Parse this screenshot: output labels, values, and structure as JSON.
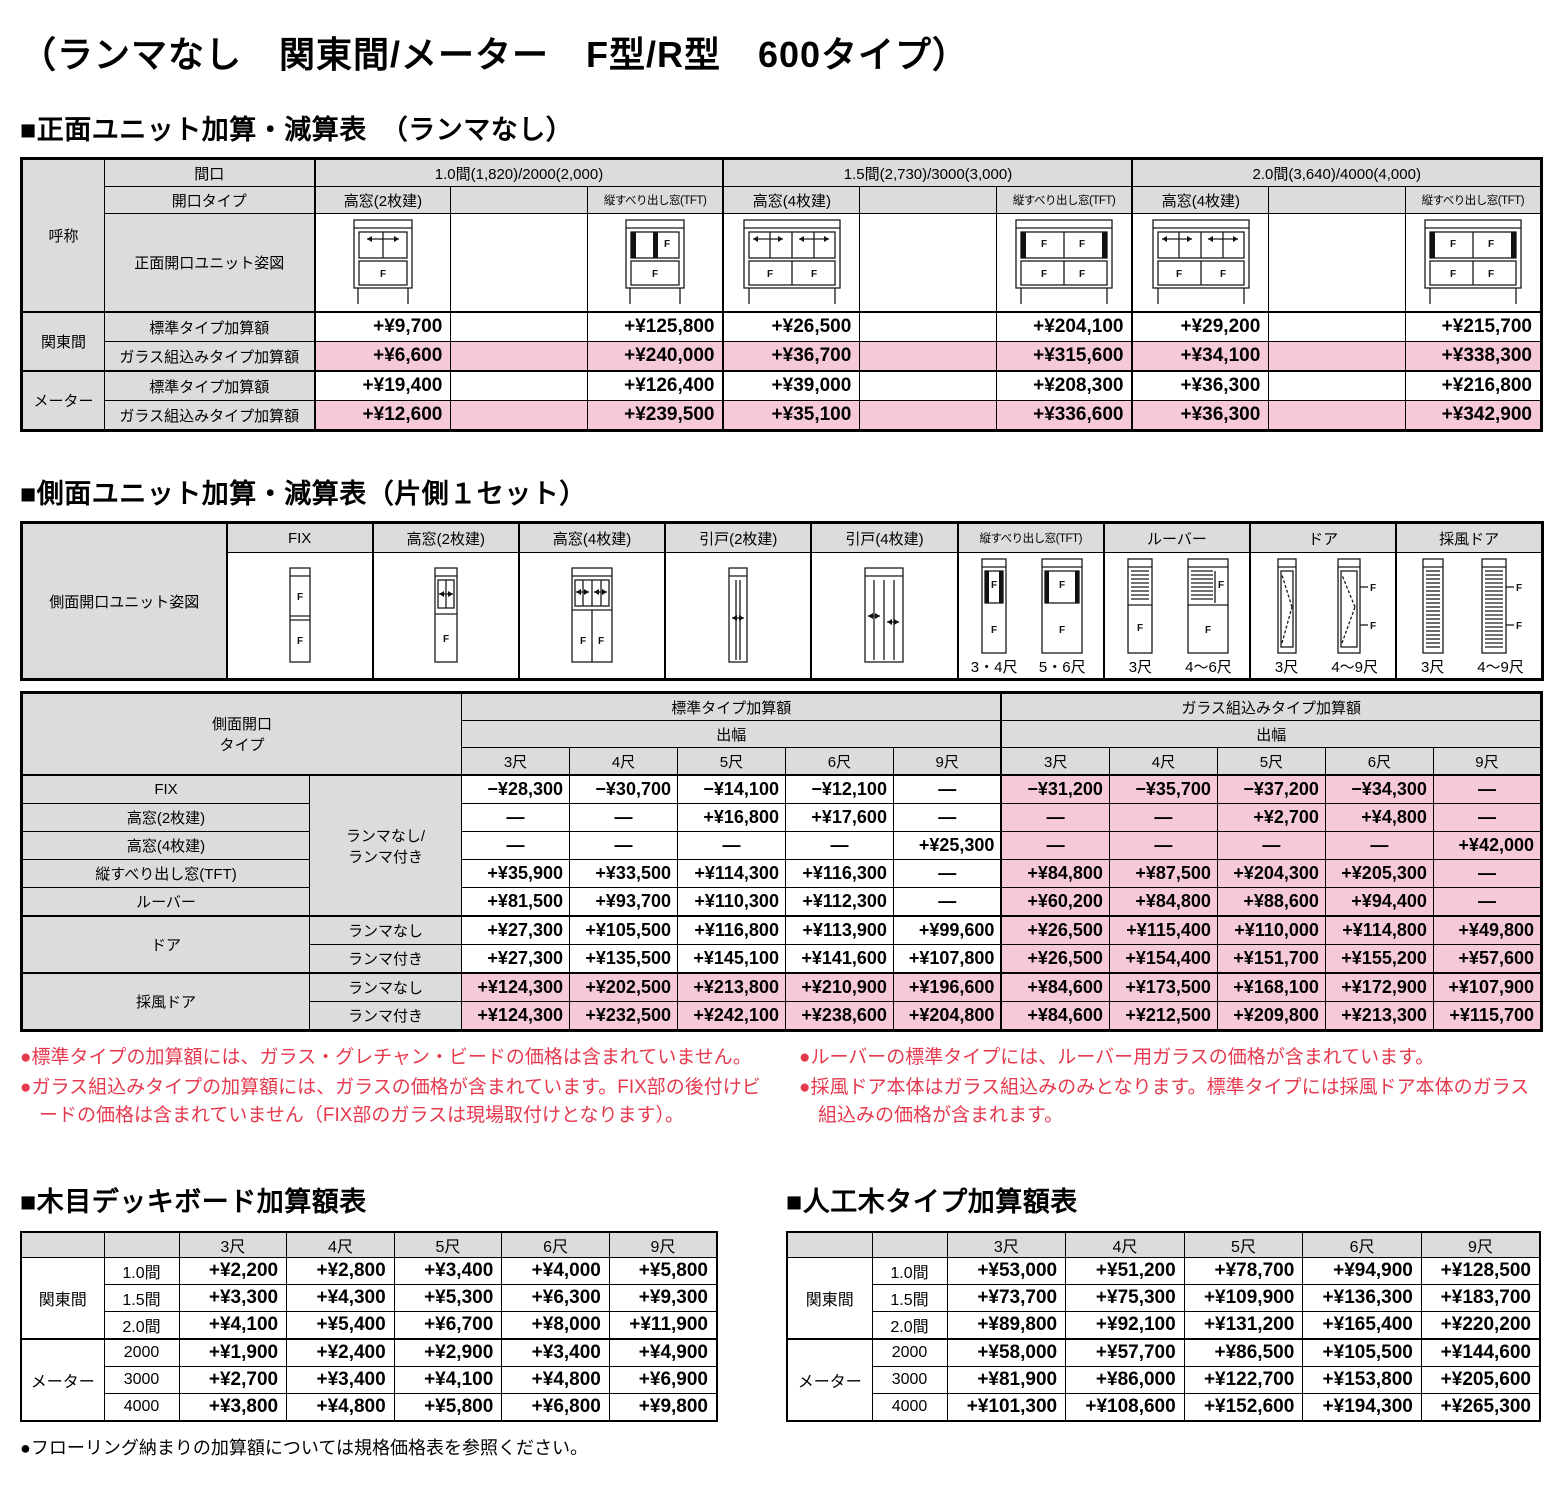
{
  "page_title": "（ランマなし　関東間/メーター　F型/R型　600タイプ）",
  "front_table": {
    "section_title": "■正面ユニット加算・減算表　（ランマなし）",
    "header": {
      "col_nickname": "呼称",
      "row_width_label": "間口",
      "row_opening_label": "開口タイプ",
      "row_diagram_label": "正面開口ユニット姿図",
      "groups": [
        {
          "span": "1.0間(1,820)/2000(2,000)",
          "cols": [
            "高窓(2枚建)",
            "",
            "縦すべり出し窓(TFT)"
          ],
          "diagrams": [
            "front-takamado2-icon",
            "",
            "front-tft-single-icon"
          ]
        },
        {
          "span": "1.5間(2,730)/3000(3,000)",
          "cols": [
            "高窓(4枚建)",
            "",
            "縦すべり出し窓(TFT)"
          ],
          "diagrams": [
            "front-takamado4-icon",
            "",
            "front-tft-double-icon"
          ]
        },
        {
          "span": "2.0間(3,640)/4000(4,000)",
          "cols": [
            "高窓(4枚建)",
            "",
            "縦すべり出し窓(TFT)"
          ],
          "diagrams": [
            "front-takamado4-icon",
            "",
            "front-tft-double-icon"
          ]
        }
      ]
    },
    "rows": [
      {
        "group": "関東間",
        "label": "標準タイプ加算額",
        "pink": false,
        "values": [
          "+¥9,700",
          "",
          "+¥125,800",
          "+¥26,500",
          "",
          "+¥204,100",
          "+¥29,200",
          "",
          "+¥215,700"
        ]
      },
      {
        "group": "関東間",
        "label": "ガラス組込みタイプ加算額",
        "pink": true,
        "values": [
          "+¥6,600",
          "",
          "+¥240,000",
          "+¥36,700",
          "",
          "+¥315,600",
          "+¥34,100",
          "",
          "+¥338,300"
        ]
      },
      {
        "group": "メーター",
        "label": "標準タイプ加算額",
        "pink": false,
        "values": [
          "+¥19,400",
          "",
          "+¥126,400",
          "+¥39,000",
          "",
          "+¥208,300",
          "+¥36,300",
          "",
          "+¥216,800"
        ]
      },
      {
        "group": "メーター",
        "label": "ガラス組込みタイプ加算額",
        "pink": true,
        "values": [
          "+¥12,600",
          "",
          "+¥239,500",
          "+¥35,100",
          "",
          "+¥336,600",
          "+¥36,300",
          "",
          "+¥342,900"
        ]
      }
    ]
  },
  "side_section_title": "■側面ユニット加算・減算表（片側１セット）",
  "side_diagram_table": {
    "row_label": "側面開口ユニット姿図",
    "columns": [
      {
        "title": "FIX",
        "items": [
          {
            "icon": "side-fix-icon",
            "size": ""
          }
        ]
      },
      {
        "title": "高窓(2枚建)",
        "items": [
          {
            "icon": "side-takamado2-icon",
            "size": ""
          }
        ]
      },
      {
        "title": "高窓(4枚建)",
        "items": [
          {
            "icon": "side-takamado4-icon",
            "size": ""
          }
        ]
      },
      {
        "title": "引戸(2枚建)",
        "items": [
          {
            "icon": "side-hikido2-icon",
            "size": ""
          }
        ]
      },
      {
        "title": "引戸(4枚建)",
        "items": [
          {
            "icon": "side-hikido4-icon",
            "size": ""
          }
        ]
      },
      {
        "title": "縦すべり出し窓(TFT)",
        "items": [
          {
            "icon": "side-tft-small-icon",
            "size": "3・4尺"
          },
          {
            "icon": "side-tft-large-icon",
            "size": "5・6尺"
          }
        ]
      },
      {
        "title": "ルーバー",
        "items": [
          {
            "icon": "side-louver-small-icon",
            "size": "3尺"
          },
          {
            "icon": "side-louver-large-icon",
            "size": "4～6尺"
          }
        ]
      },
      {
        "title": "ドア",
        "items": [
          {
            "icon": "side-door-small-icon",
            "size": "3尺"
          },
          {
            "icon": "side-door-large-icon",
            "size": "4～9尺"
          }
        ]
      },
      {
        "title": "採風ドア",
        "items": [
          {
            "icon": "side-windoor-small-icon",
            "size": "3尺"
          },
          {
            "icon": "side-windoor-large-icon",
            "size": "4～9尺"
          }
        ]
      }
    ]
  },
  "side_price_table": {
    "type_header": "側面開口\nタイプ",
    "std_header": "標準タイプ加算額",
    "glass_header": "ガラス組込みタイプ加算額",
    "width_header": "出幅",
    "sizes": [
      "3尺",
      "4尺",
      "5尺",
      "6尺",
      "9尺"
    ],
    "rows": [
      {
        "type": "FIX",
        "type_span": 1,
        "sub": "ランマなし/\nランマ付き",
        "sub_span": 5,
        "std_pink": false,
        "std": [
          "−¥28,300",
          "−¥30,700",
          "−¥14,100",
          "−¥12,100",
          "—"
        ],
        "glass": [
          "−¥31,200",
          "−¥35,700",
          "−¥37,200",
          "−¥34,300",
          "—"
        ]
      },
      {
        "type": "高窓(2枚建)",
        "type_span": 1,
        "std_pink": false,
        "std": [
          "—",
          "—",
          "+¥16,800",
          "+¥17,600",
          "—"
        ],
        "glass": [
          "—",
          "—",
          "+¥2,700",
          "+¥4,800",
          "—"
        ]
      },
      {
        "type": "高窓(4枚建)",
        "type_span": 1,
        "std_pink": false,
        "std": [
          "—",
          "—",
          "—",
          "—",
          "+¥25,300"
        ],
        "glass": [
          "—",
          "—",
          "—",
          "—",
          "+¥42,000"
        ]
      },
      {
        "type": "縦すべり出し窓(TFT)",
        "type_span": 1,
        "std_pink": false,
        "std": [
          "+¥35,900",
          "+¥33,500",
          "+¥114,300",
          "+¥116,300",
          "—"
        ],
        "glass": [
          "+¥84,800",
          "+¥87,500",
          "+¥204,300",
          "+¥205,300",
          "—"
        ]
      },
      {
        "type": "ルーバー",
        "type_span": 1,
        "std_pink": false,
        "std": [
          "+¥81,500",
          "+¥93,700",
          "+¥110,300",
          "+¥112,300",
          "—"
        ],
        "glass": [
          "+¥60,200",
          "+¥84,800",
          "+¥88,600",
          "+¥94,400",
          "—"
        ]
      },
      {
        "type": "ドア",
        "type_span": 2,
        "sub": "ランマなし",
        "sub_span": 1,
        "thick_top": true,
        "std_pink": false,
        "std": [
          "+¥27,300",
          "+¥105,500",
          "+¥116,800",
          "+¥113,900",
          "+¥99,600"
        ],
        "glass": [
          "+¥26,500",
          "+¥115,400",
          "+¥110,000",
          "+¥114,800",
          "+¥49,800"
        ]
      },
      {
        "sub": "ランマ付き",
        "sub_span": 1,
        "std_pink": false,
        "std": [
          "+¥27,300",
          "+¥135,500",
          "+¥145,100",
          "+¥141,600",
          "+¥107,800"
        ],
        "glass": [
          "+¥26,500",
          "+¥154,400",
          "+¥151,700",
          "+¥155,200",
          "+¥57,600"
        ]
      },
      {
        "type": "採風ドア",
        "type_span": 2,
        "sub": "ランマなし",
        "sub_span": 1,
        "thick_top": true,
        "std_pink": true,
        "std": [
          "+¥124,300",
          "+¥202,500",
          "+¥213,800",
          "+¥210,900",
          "+¥196,600"
        ],
        "glass": [
          "+¥84,600",
          "+¥173,500",
          "+¥168,100",
          "+¥172,900",
          "+¥107,900"
        ]
      },
      {
        "sub": "ランマ付き",
        "sub_span": 1,
        "std_pink": true,
        "std": [
          "+¥124,300",
          "+¥232,500",
          "+¥242,100",
          "+¥238,600",
          "+¥204,800"
        ],
        "glass": [
          "+¥84,600",
          "+¥212,500",
          "+¥209,800",
          "+¥213,300",
          "+¥115,700"
        ]
      }
    ]
  },
  "notes_left": [
    "●標準タイプの加算額には、ガラス・グレチャン・ビードの価格は含まれていません。",
    "●ガラス組込みタイプの加算額には、ガラスの価格が含まれています。FIX部の後付けビードの価格は含まれていません（FIX部のガラスは現場取付けとなります）。"
  ],
  "notes_right": [
    "●ルーバーの標準タイプには、ルーバー用ガラスの価格が含まれています。",
    "●採風ドア本体はガラス組込みのみとなります。標準タイプには採風ドア本体のガラス組込みの価格が含まれます。"
  ],
  "deck_table": {
    "title": "■木目デッキボード加算額表",
    "sizes": [
      "3尺",
      "4尺",
      "5尺",
      "6尺",
      "9尺"
    ],
    "groups": [
      {
        "name": "関東間",
        "rows": [
          {
            "size": "1.0間",
            "values": [
              "+¥2,200",
              "+¥2,800",
              "+¥3,400",
              "+¥4,000",
              "+¥5,800"
            ]
          },
          {
            "size": "1.5間",
            "values": [
              "+¥3,300",
              "+¥4,300",
              "+¥5,300",
              "+¥6,300",
              "+¥9,300"
            ]
          },
          {
            "size": "2.0間",
            "values": [
              "+¥4,100",
              "+¥5,400",
              "+¥6,700",
              "+¥8,000",
              "+¥11,900"
            ]
          }
        ]
      },
      {
        "name": "メーター",
        "rows": [
          {
            "size": "2000",
            "values": [
              "+¥1,900",
              "+¥2,400",
              "+¥2,900",
              "+¥3,400",
              "+¥4,900"
            ]
          },
          {
            "size": "3000",
            "values": [
              "+¥2,700",
              "+¥3,400",
              "+¥4,100",
              "+¥4,800",
              "+¥6,900"
            ]
          },
          {
            "size": "4000",
            "values": [
              "+¥3,800",
              "+¥4,800",
              "+¥5,800",
              "+¥6,800",
              "+¥9,800"
            ]
          }
        ]
      }
    ]
  },
  "wood_table": {
    "title": "■人工木タイプ加算額表",
    "sizes": [
      "3尺",
      "4尺",
      "5尺",
      "6尺",
      "9尺"
    ],
    "groups": [
      {
        "name": "関東間",
        "rows": [
          {
            "size": "1.0間",
            "values": [
              "+¥53,000",
              "+¥51,200",
              "+¥78,700",
              "+¥94,900",
              "+¥128,500"
            ]
          },
          {
            "size": "1.5間",
            "values": [
              "+¥73,700",
              "+¥75,300",
              "+¥109,900",
              "+¥136,300",
              "+¥183,700"
            ]
          },
          {
            "size": "2.0間",
            "values": [
              "+¥89,800",
              "+¥92,100",
              "+¥131,200",
              "+¥165,400",
              "+¥220,200"
            ]
          }
        ]
      },
      {
        "name": "メーター",
        "rows": [
          {
            "size": "2000",
            "values": [
              "+¥58,000",
              "+¥57,700",
              "+¥86,500",
              "+¥105,500",
              "+¥144,600"
            ]
          },
          {
            "size": "3000",
            "values": [
              "+¥81,900",
              "+¥86,000",
              "+¥122,700",
              "+¥153,800",
              "+¥205,600"
            ]
          },
          {
            "size": "4000",
            "values": [
              "+¥101,300",
              "+¥108,600",
              "+¥152,600",
              "+¥194,300",
              "+¥265,300"
            ]
          }
        ]
      }
    ]
  },
  "bottom_note": "●フローリング納まりの加算額については規格価格表を参照ください。",
  "colors": {
    "header_gray": "#dcdcdc",
    "glass_pink": "#f6c9da",
    "note_red": "#e6394e",
    "border_black": "#000000"
  }
}
